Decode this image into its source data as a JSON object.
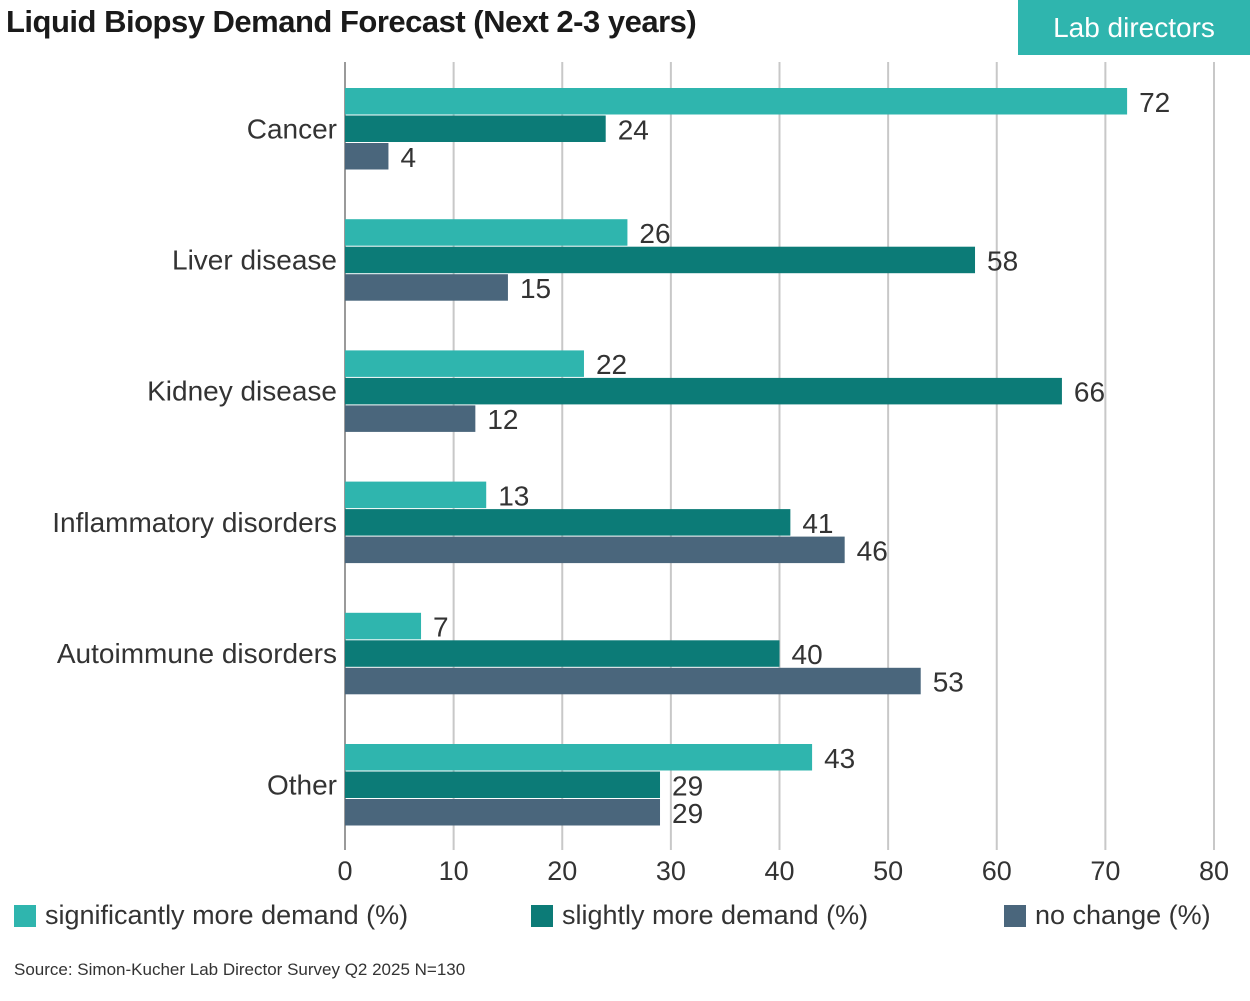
{
  "header": {
    "title": "Liquid Biopsy Demand Forecast (Next 2-3 years)",
    "badge": "Lab directors"
  },
  "chart_data": {
    "type": "bar",
    "orientation": "horizontal",
    "title": "Liquid Biopsy Demand Forecast (Next 2-3 years)",
    "categories": [
      "Cancer",
      "Liver disease",
      "Kidney disease",
      "Inflammatory disorders",
      "Autoimmune disorders",
      "Other"
    ],
    "series": [
      {
        "name": "significantly more demand (%)",
        "color": "#2fb5ae",
        "values": [
          72,
          26,
          22,
          13,
          7,
          43
        ]
      },
      {
        "name": "slightly more demand (%)",
        "color": "#0c7b77",
        "values": [
          24,
          58,
          66,
          41,
          40,
          29
        ]
      },
      {
        "name": "no change (%)",
        "color": "#4a667c",
        "values": [
          4,
          15,
          12,
          46,
          53,
          29
        ]
      }
    ],
    "xlim": [
      0,
      80
    ],
    "xticks": [
      0,
      10,
      20,
      30,
      40,
      50,
      60,
      70,
      80
    ],
    "grid": true,
    "legend_position": "bottom"
  },
  "source": "Source: Simon-Kucher Lab Director Survey Q2 2025 N=130"
}
